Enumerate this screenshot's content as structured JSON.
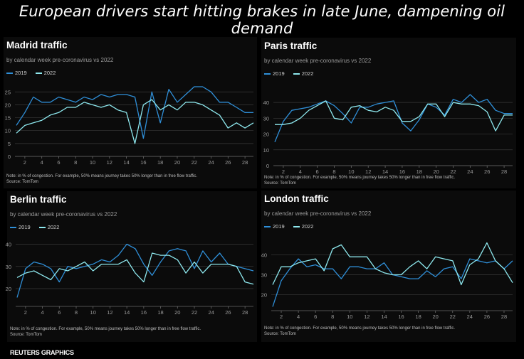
{
  "headline": "European drivers start hitting brakes in late June, dampening oil demand",
  "footer": "REUTERS GRAPHICS",
  "colors": {
    "s2019": "#2f8fd8",
    "s2022": "#8ee8ee",
    "grid": "#3a3a3a",
    "background": "#000000"
  },
  "chart_data": [
    {
      "type": "line",
      "title": "Madrid traffic",
      "subtitle": "by calendar week pre-coronavirus vs 2022",
      "note": "Note: in % of congestion. For example, 50% means journey takes 50% longer than in free flow traffic.",
      "source": "Source: TomTom",
      "x": [
        1,
        2,
        3,
        4,
        5,
        6,
        7,
        8,
        9,
        10,
        11,
        12,
        13,
        14,
        15,
        16,
        17,
        18,
        19,
        20,
        21,
        22,
        23,
        24,
        25,
        26,
        27,
        28,
        29
      ],
      "xticks": [
        2,
        4,
        6,
        8,
        10,
        12,
        14,
        16,
        18,
        20,
        22,
        24,
        26,
        28
      ],
      "yticks": [
        0,
        5,
        10,
        15,
        20,
        25
      ],
      "ylim": [
        0,
        27
      ],
      "series": [
        {
          "name": "2019",
          "values": [
            12,
            17,
            23,
            21,
            21,
            23,
            22,
            21,
            23,
            22,
            24,
            23,
            24,
            24,
            23,
            7,
            25,
            13,
            26,
            21,
            24,
            27,
            27,
            25,
            21,
            21,
            19,
            17,
            17
          ]
        },
        {
          "name": "2022",
          "values": [
            9,
            12,
            13,
            14,
            16,
            17,
            19,
            19,
            21,
            20,
            19,
            20,
            18,
            17,
            5,
            20,
            22,
            18,
            20,
            18,
            21,
            21,
            20,
            18,
            16,
            11,
            13,
            11,
            13
          ]
        }
      ]
    },
    {
      "type": "line",
      "title": "Paris traffic",
      "subtitle": "by calendar week pre-coronavirus vs 2022",
      "note": "Note: in % of congestion. For example, 50% means journey takes 50% longer than in free flow traffic.",
      "source": "Source: TomTom",
      "x": [
        1,
        2,
        3,
        4,
        5,
        6,
        7,
        8,
        9,
        10,
        11,
        12,
        13,
        14,
        15,
        16,
        17,
        18,
        19,
        20,
        21,
        22,
        23,
        24,
        25,
        26,
        27,
        28,
        29
      ],
      "xticks": [
        2,
        4,
        6,
        8,
        10,
        12,
        14,
        16,
        18,
        20,
        22,
        24,
        26,
        28
      ],
      "yticks": [
        0,
        10,
        20,
        30,
        40
      ],
      "ylim": [
        0,
        45
      ],
      "series": [
        {
          "name": "2019",
          "values": [
            15,
            28,
            35,
            36,
            37,
            39,
            41,
            38,
            33,
            27,
            37,
            37,
            39,
            40,
            41,
            27,
            22,
            29,
            39,
            37,
            32,
            42,
            40,
            45,
            40,
            42,
            35,
            33,
            33
          ]
        },
        {
          "name": "2022",
          "values": [
            26,
            26,
            27,
            30,
            35,
            38,
            41,
            30,
            29,
            37,
            38,
            35,
            34,
            37,
            35,
            28,
            28,
            31,
            39,
            39,
            31,
            40,
            39,
            39,
            38,
            34,
            22,
            32,
            32
          ]
        }
      ]
    },
    {
      "type": "line",
      "title": "Berlin traffic",
      "subtitle": "by calendar week pre-coronavirus vs 2022",
      "note": "Note: in % of congestion. For example, 50% means journey takes 50% longer than in free flow traffic.",
      "source": "Source: TomTom",
      "x": [
        1,
        2,
        3,
        4,
        5,
        6,
        7,
        8,
        9,
        10,
        11,
        12,
        13,
        14,
        15,
        16,
        17,
        18,
        19,
        20,
        21,
        22,
        23,
        24,
        25,
        26,
        27,
        28,
        29
      ],
      "xticks": [
        2,
        4,
        6,
        8,
        10,
        12,
        14,
        16,
        18,
        20,
        22,
        24,
        26,
        28
      ],
      "yticks": [
        20,
        30,
        40
      ],
      "ylim": [
        12,
        44
      ],
      "series": [
        {
          "name": "2019",
          "values": [
            16,
            29,
            32,
            31,
            29,
            23,
            30,
            29,
            30,
            31,
            33,
            32,
            35,
            40,
            38,
            31,
            26,
            32,
            37,
            38,
            37,
            29,
            37,
            32,
            36,
            31,
            30,
            29,
            28
          ]
        },
        {
          "name": "2022",
          "values": [
            25,
            27,
            28,
            26,
            24,
            29,
            28,
            30,
            32,
            28,
            31,
            31,
            31,
            33,
            27,
            23,
            36,
            35,
            35,
            33,
            27,
            32,
            27,
            31,
            31,
            31,
            30,
            23,
            22
          ]
        }
      ]
    },
    {
      "type": "line",
      "title": "London traffic",
      "subtitle": "by calendar week pre-coronavirus vs 2022",
      "note": "Note: in % of congestion. For example, 50% means journey takes 50% longer than in free flow traffic.",
      "source": "Source: TomTom",
      "x": [
        1,
        2,
        3,
        4,
        5,
        6,
        7,
        8,
        9,
        10,
        11,
        12,
        13,
        14,
        15,
        16,
        17,
        18,
        19,
        20,
        21,
        22,
        23,
        24,
        25,
        26,
        27,
        28,
        29
      ],
      "xticks": [
        2,
        4,
        6,
        8,
        10,
        12,
        14,
        16,
        18,
        20,
        22,
        24,
        26,
        28
      ],
      "yticks": [
        20,
        30,
        40
      ],
      "ylim": [
        12,
        48
      ],
      "series": [
        {
          "name": "2019",
          "values": [
            14,
            27,
            33,
            38,
            34,
            35,
            33,
            33,
            28,
            34,
            34,
            33,
            33,
            36,
            30,
            29,
            28,
            28,
            32,
            29,
            33,
            34,
            28,
            38,
            37,
            36,
            37,
            33,
            37
          ]
        },
        {
          "name": "2022",
          "values": [
            25,
            34,
            34,
            36,
            37,
            38,
            32,
            43,
            45,
            39,
            39,
            39,
            33,
            31,
            30,
            30,
            34,
            37,
            33,
            39,
            38,
            37,
            25,
            35,
            38,
            46,
            37,
            33,
            26
          ]
        }
      ]
    }
  ]
}
